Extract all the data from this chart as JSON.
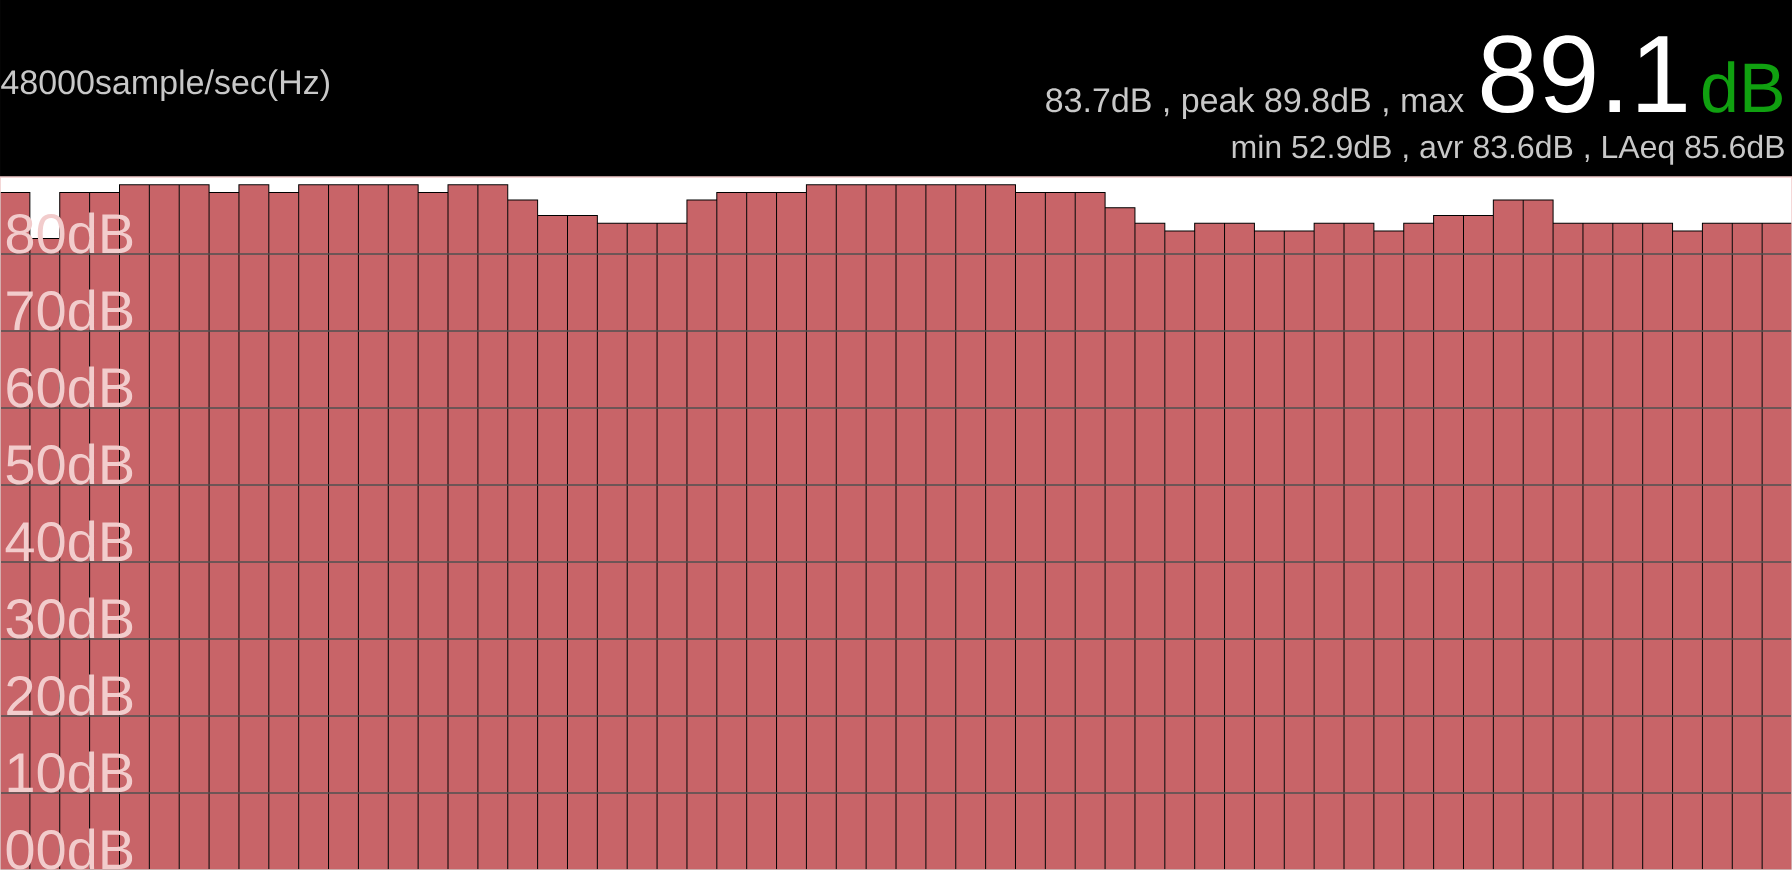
{
  "chart_data": {
    "type": "bar",
    "annotations": [
      "48000sample/sec(Hz)",
      "83.7dB , peak 89.8dB , max",
      "89.1",
      "dB",
      "min 52.9dB , avr 83.6dB , LAeq 85.6dB"
    ],
    "categories": [
      null,
      null,
      null,
      null,
      null,
      null,
      null,
      null,
      null,
      null,
      null,
      null,
      null,
      null,
      null,
      null,
      null,
      null,
      null,
      null,
      null,
      null,
      null,
      null,
      null,
      null,
      null,
      null,
      null,
      null,
      null,
      null,
      null,
      null,
      null,
      null,
      null,
      null,
      null,
      null,
      null,
      null,
      null,
      null,
      null,
      null,
      null,
      null,
      null,
      null,
      null,
      null,
      null,
      null,
      null,
      null,
      null,
      null,
      null,
      null
    ],
    "values": [
      88,
      82,
      88,
      88,
      89,
      89,
      89,
      88,
      89,
      88,
      89,
      89,
      89,
      89,
      88,
      89,
      89,
      87,
      85,
      85,
      84,
      84,
      84,
      87,
      88,
      88,
      88,
      89,
      89,
      89,
      89,
      89,
      89,
      89,
      88,
      88,
      88,
      86,
      84,
      83,
      84,
      84,
      83,
      83,
      84,
      84,
      83,
      84,
      85,
      85,
      87,
      87,
      84,
      84,
      84,
      84,
      83,
      84,
      84,
      84
    ],
    "color": "#c86468",
    "ylim": [
      0,
      90
    ],
    "yticks": [
      {
        "value": 0,
        "label": "00dB"
      },
      {
        "value": 10,
        "label": "10dB"
      },
      {
        "value": 20,
        "label": "20dB"
      },
      {
        "value": 30,
        "label": "30dB"
      },
      {
        "value": 40,
        "label": "40dB"
      },
      {
        "value": 50,
        "label": "50dB"
      },
      {
        "value": 60,
        "label": "60dB"
      },
      {
        "value": 70,
        "label": "70dB"
      },
      {
        "value": 80,
        "label": "80dB"
      }
    ],
    "grid": "y",
    "tick_labels": "y"
  }
}
